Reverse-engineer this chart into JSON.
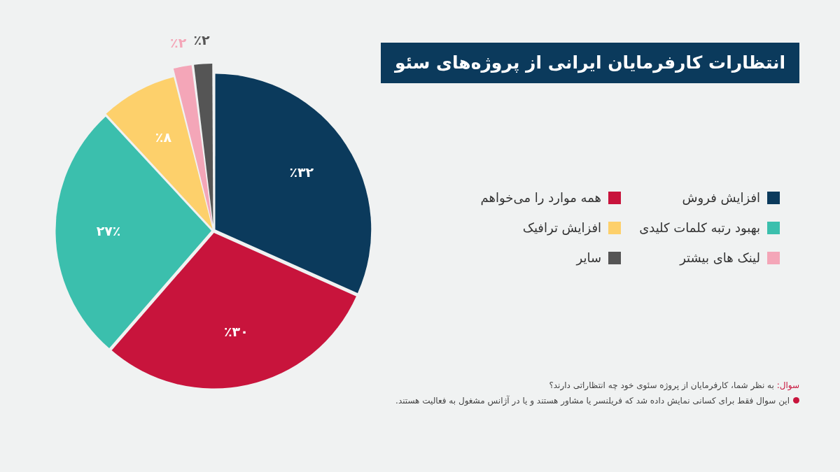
{
  "chart_data": {
    "type": "pie",
    "title": "انتظارات کارفرمایان ایرانی از پروژه‌های سئو",
    "categories": [
      "افزایش فروش",
      "همه موارد را می‌خواهم",
      "بهبود رتبه کلمات کلیدی",
      "افزایش ترافیک",
      "لینک های بیشتر",
      "سایر"
    ],
    "values": [
      32,
      30,
      27,
      8,
      2,
      2
    ],
    "value_labels": [
      "٪۳۲",
      "٪۳۰",
      "۲۷٪",
      "٪۸",
      "٪۲",
      "٪۲"
    ],
    "colors": [
      "#0b3a5c",
      "#c8143c",
      "#3bbfad",
      "#fdd06b",
      "#f4a6b8",
      "#555555"
    ],
    "legend": "right",
    "annotations": [
      "سوال: به نظر شما، کارفرمایان از پروژه سئوی خود چه انتظاراتی دارند؟",
      "این سوال فقط برای کسانی نمایش داده شد که فریلنسر یا مشاور هستند و یا در آژانس مشغول به فعالیت هستند."
    ]
  }
}
